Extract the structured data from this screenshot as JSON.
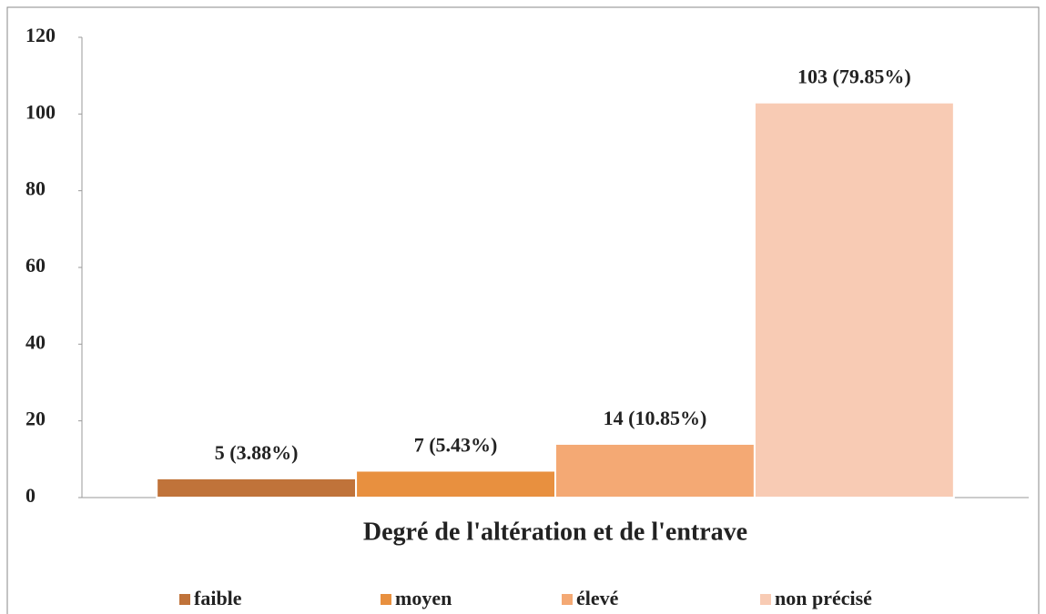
{
  "chart_data": {
    "type": "bar",
    "x_label": "Degré de l'altération et de l'entrave",
    "categories": [
      null
    ],
    "series": [
      {
        "name": "faible",
        "color": "#c0733a",
        "values": [
          5
        ],
        "value_labels": [
          "5 (3.88%)"
        ]
      },
      {
        "name": "moyen",
        "color": "#e8903f",
        "values": [
          7
        ],
        "value_labels": [
          "7 (5.43%)"
        ]
      },
      {
        "name": "élevé",
        "color": "#f4a974",
        "values": [
          14
        ],
        "value_labels": [
          "14 (10.85%)"
        ]
      },
      {
        "name": "non précisé",
        "color": "#f8cbb4",
        "values": [
          103
        ],
        "value_labels": [
          "103 (79.85%)"
        ]
      }
    ],
    "ylim": [
      0,
      120
    ],
    "yticks": [
      0,
      20,
      40,
      60,
      80,
      100,
      120
    ],
    "grid": false,
    "legend": "bottom"
  }
}
